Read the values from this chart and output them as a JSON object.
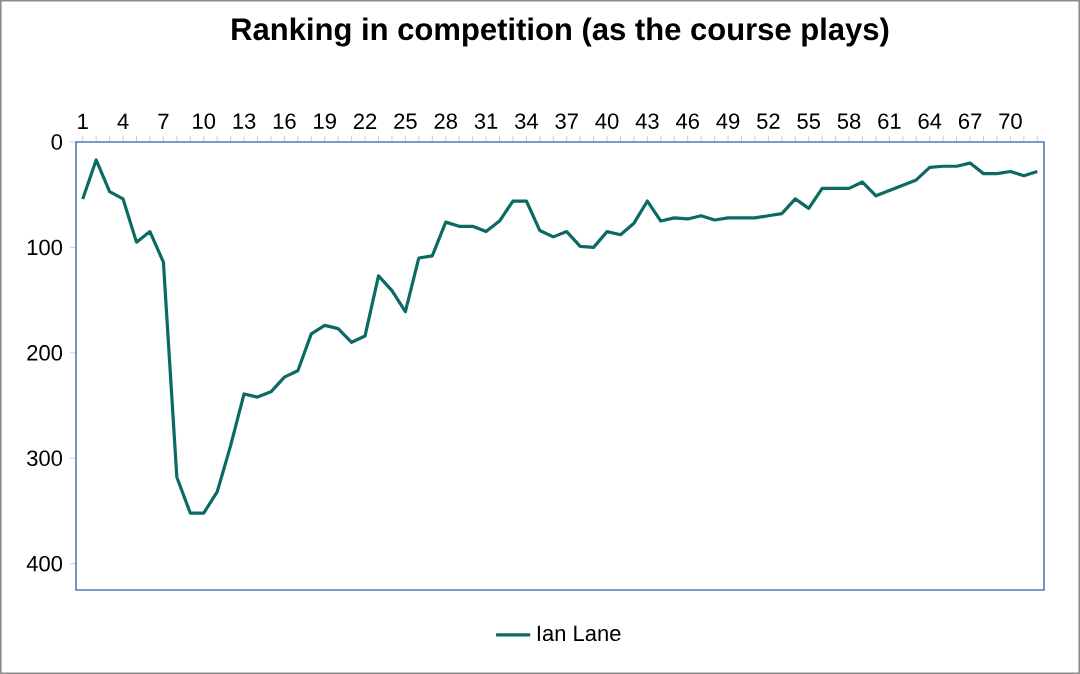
{
  "chart_data": {
    "type": "line",
    "title": "Ranking in competition (as the course plays)",
    "categories": [
      "1",
      null,
      null,
      "4",
      null,
      null,
      "7",
      null,
      null,
      "10",
      null,
      null,
      "13",
      null,
      null,
      "16",
      null,
      null,
      "19",
      null,
      null,
      "22",
      null,
      null,
      "25",
      null,
      null,
      "28",
      null,
      null,
      "31",
      null,
      null,
      "34",
      null,
      null,
      "37",
      null,
      null,
      "40",
      null,
      null,
      "43",
      null,
      null,
      "46",
      null,
      null,
      "49",
      null,
      null,
      "52",
      null,
      null,
      "55",
      null,
      null,
      "58",
      null,
      null,
      "61",
      null,
      null,
      "64",
      null,
      null,
      "67",
      null,
      null,
      "70",
      null,
      null
    ],
    "series": [
      {
        "name": "Ian Lane",
        "color": "#0b6a63",
        "values": [
          54,
          17,
          47,
          54,
          95,
          85,
          114,
          318,
          352,
          352,
          332,
          288,
          239,
          242,
          237,
          223,
          217,
          182,
          174,
          177,
          190,
          184,
          127,
          141,
          161,
          110,
          108,
          76,
          80,
          80,
          85,
          75,
          56,
          56,
          84,
          90,
          85,
          99,
          100,
          85,
          88,
          77,
          56,
          75,
          72,
          73,
          70,
          74,
          72,
          72,
          72,
          70,
          68,
          54,
          63,
          44,
          44,
          44,
          38,
          51,
          46,
          41,
          36,
          24,
          23,
          23,
          20,
          30,
          30,
          28,
          32,
          28
        ]
      }
    ],
    "ylim": [
      425,
      0
    ],
    "yticks": [
      0,
      100,
      200,
      300,
      400
    ],
    "legend": "bottom",
    "grid": false,
    "marker": "none"
  }
}
